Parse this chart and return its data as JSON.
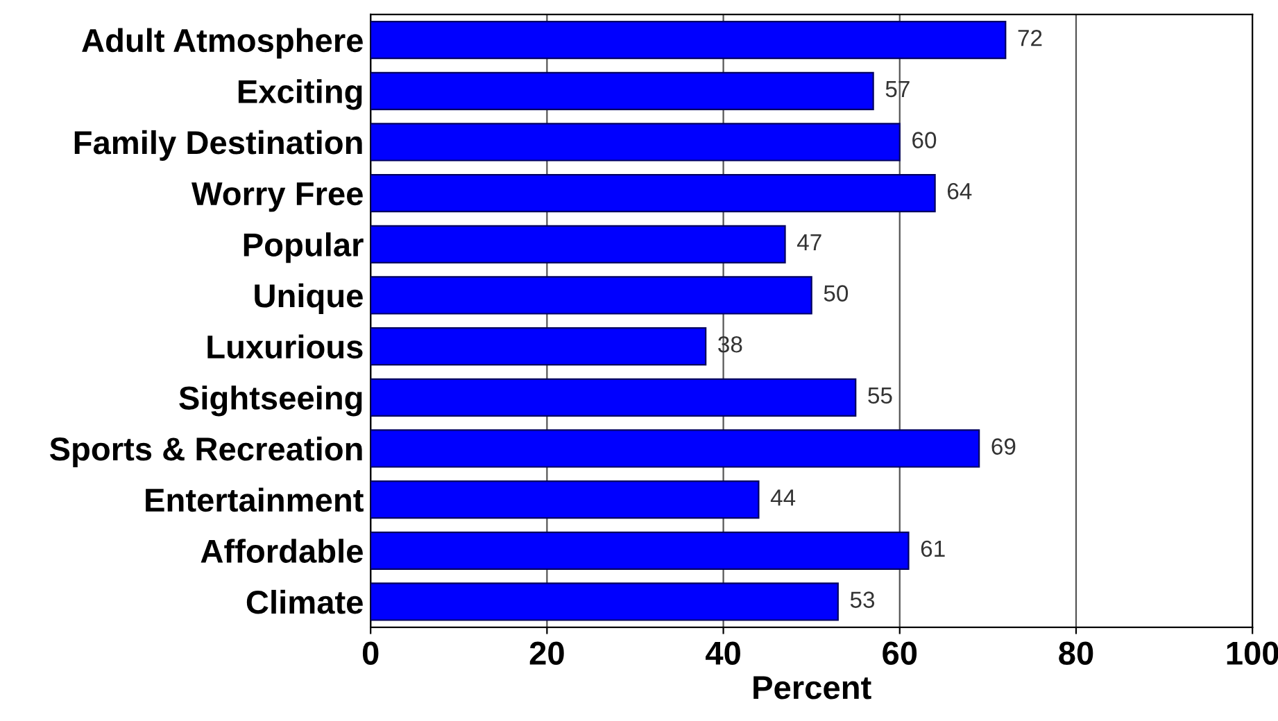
{
  "chart_data": {
    "type": "bar",
    "orientation": "horizontal",
    "xlabel": "Percent",
    "categories": [
      "Adult Atmosphere",
      "Exciting",
      "Family Destination",
      "Worry Free",
      "Popular",
      "Unique",
      "Luxurious",
      "Sightseeing",
      "Sports & Recreation",
      "Entertainment",
      "Affordable",
      "Climate"
    ],
    "values": [
      72,
      57,
      60,
      64,
      47,
      50,
      38,
      55,
      69,
      44,
      61,
      53
    ],
    "color": "#0000ff",
    "xlim": [
      0,
      100
    ],
    "xticks": [
      0,
      20,
      40,
      60,
      80,
      100
    ],
    "grid": "x",
    "data_labels": true
  }
}
